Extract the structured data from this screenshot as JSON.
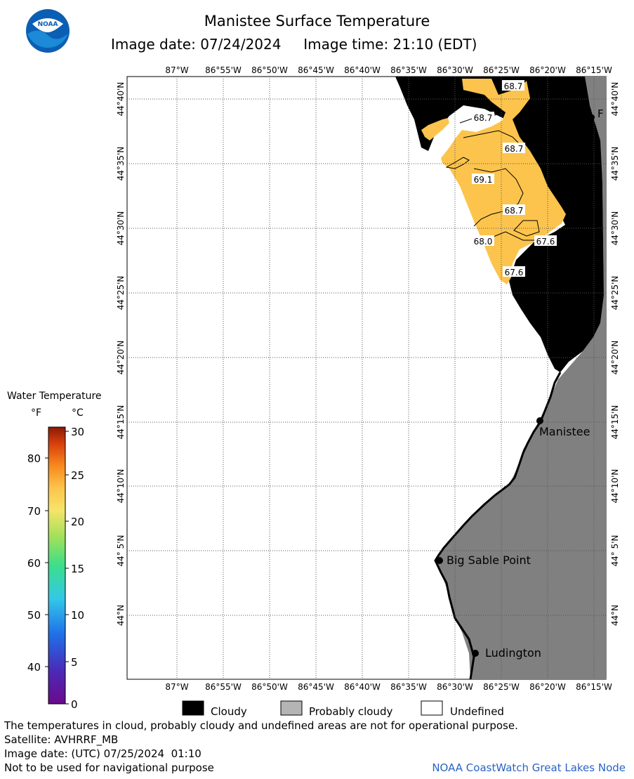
{
  "header": {
    "title": "Manistee Surface Temperature",
    "image_date_label": "Image date: 07/24/2024",
    "image_time_label": "Image time: 21:10 (EDT)",
    "logo_text": "NOAA"
  },
  "map": {
    "lon_labels": [
      "87°W",
      "86°55'W",
      "86°50'W",
      "86°45'W",
      "86°40'W",
      "86°35'W",
      "86°30'W",
      "86°25'W",
      "86°20'W",
      "86°15'W"
    ],
    "lat_labels": [
      "44°40'N",
      "44°35'N",
      "44°30'N",
      "44°25'N",
      "44°20'N",
      "44°15'N",
      "44°10'N",
      "44° 5'N",
      "44°N"
    ],
    "contour_labels": [
      "68.7",
      "68.7",
      "68.7",
      "69.1",
      "68.7",
      "68.0",
      "67.6",
      "67.6"
    ],
    "places": [
      "Manistee",
      "Big Sable Point",
      "Ludington",
      "F"
    ],
    "colors": {
      "cloudy": "#000000",
      "probably_cloudy": "#808080",
      "sst": "#fcc44c",
      "land_line": "#000000"
    }
  },
  "colorbar": {
    "title": "Water Temperature",
    "unit_f": "°F",
    "unit_c": "°C",
    "f_ticks": [
      "80",
      "70",
      "60",
      "50",
      "40"
    ],
    "c_ticks": [
      "30",
      "25",
      "20",
      "15",
      "10",
      "5",
      "0"
    ]
  },
  "legend": {
    "cloudy": "Cloudy",
    "probably_cloudy": "Probably cloudy",
    "undefined": "Undefined"
  },
  "footer": {
    "disclaimer": "The temperatures in cloud, probably cloudy and undefined areas are not for operational purpose.",
    "satellite": "Satellite: AVHRRF_MB",
    "utc_date": "Image date: (UTC) 07/25/2024  01:10",
    "navigation": "Not to be used for navigational purpose",
    "credit": "NOAA CoastWatch Great Lakes Node"
  }
}
